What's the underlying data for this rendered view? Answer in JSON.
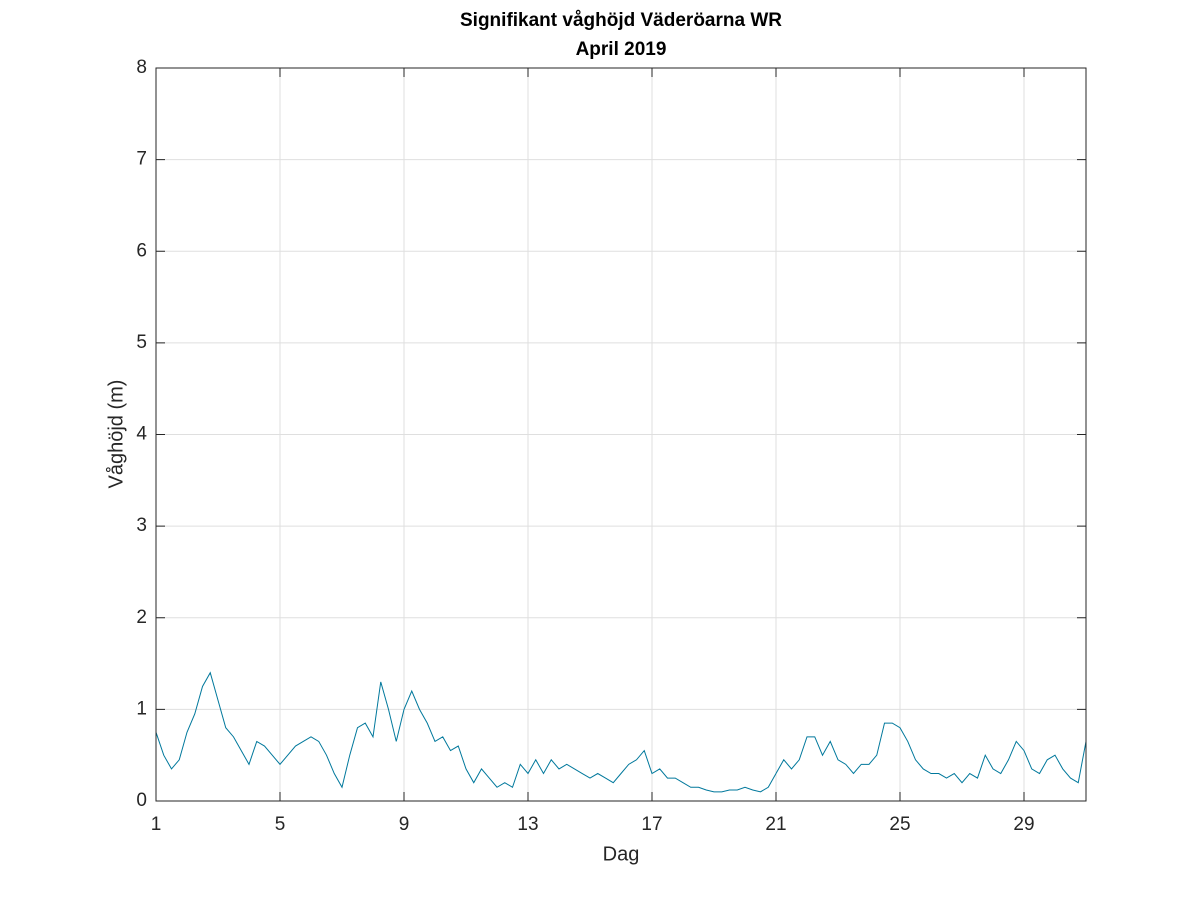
{
  "chart_data": {
    "type": "line",
    "title": "Signifikant våghöjd Väderöarna WR",
    "subtitle": "April 2019",
    "xlabel": "Dag",
    "ylabel": "Våghöjd (m)",
    "x": [
      1,
      1.25,
      1.5,
      1.75,
      2,
      2.25,
      2.5,
      2.75,
      3,
      3.25,
      3.5,
      3.75,
      4,
      4.25,
      4.5,
      4.75,
      5,
      5.25,
      5.5,
      5.75,
      6,
      6.25,
      6.5,
      6.75,
      7,
      7.25,
      7.5,
      7.75,
      8,
      8.25,
      8.5,
      8.75,
      9,
      9.25,
      9.5,
      9.75,
      10,
      10.25,
      10.5,
      10.75,
      11,
      11.25,
      11.5,
      11.75,
      12,
      12.25,
      12.5,
      12.75,
      13,
      13.25,
      13.5,
      13.75,
      14,
      14.25,
      14.5,
      14.75,
      15,
      15.25,
      15.5,
      15.75,
      16,
      16.25,
      16.5,
      16.75,
      17,
      17.25,
      17.5,
      17.75,
      18,
      18.25,
      18.5,
      18.75,
      19,
      19.25,
      19.5,
      19.75,
      20,
      20.25,
      20.5,
      20.75,
      21,
      21.25,
      21.5,
      21.75,
      22,
      22.25,
      22.5,
      22.75,
      23,
      23.25,
      23.5,
      23.75,
      24,
      24.25,
      24.5,
      24.75,
      25,
      25.25,
      25.5,
      25.75,
      26,
      26.25,
      26.5,
      26.75,
      27,
      27.25,
      27.5,
      27.75,
      28,
      28.25,
      28.5,
      28.75,
      29,
      29.25,
      29.5,
      29.75,
      30,
      30.25,
      30.5,
      30.75,
      31
    ],
    "series": [
      {
        "color": "#00789c",
        "values": [
          0.75,
          0.5,
          0.35,
          0.45,
          0.75,
          0.95,
          1.25,
          1.4,
          1.1,
          0.8,
          0.7,
          0.55,
          0.4,
          0.65,
          0.6,
          0.5,
          0.4,
          0.5,
          0.6,
          0.65,
          0.7,
          0.65,
          0.5,
          0.3,
          0.15,
          0.5,
          0.8,
          0.85,
          0.7,
          1.3,
          1.0,
          0.65,
          1.0,
          1.2,
          1.0,
          0.85,
          0.65,
          0.7,
          0.55,
          0.6,
          0.35,
          0.2,
          0.35,
          0.25,
          0.15,
          0.2,
          0.15,
          0.4,
          0.3,
          0.45,
          0.3,
          0.45,
          0.35,
          0.4,
          0.35,
          0.3,
          0.25,
          0.3,
          0.25,
          0.2,
          0.3,
          0.4,
          0.45,
          0.55,
          0.3,
          0.35,
          0.25,
          0.25,
          0.2,
          0.15,
          0.15,
          0.12,
          0.1,
          0.1,
          0.12,
          0.12,
          0.15,
          0.12,
          0.1,
          0.15,
          0.3,
          0.45,
          0.35,
          0.45,
          0.7,
          0.7,
          0.5,
          0.65,
          0.45,
          0.4,
          0.3,
          0.4,
          0.4,
          0.5,
          0.85,
          0.85,
          0.8,
          0.65,
          0.45,
          0.35,
          0.3,
          0.3,
          0.25,
          0.3,
          0.2,
          0.3,
          0.25,
          0.5,
          0.35,
          0.3,
          0.45,
          0.65,
          0.55,
          0.35,
          0.3,
          0.45,
          0.5,
          0.35,
          0.25,
          0.2,
          0.65
        ]
      }
    ],
    "xlim": [
      1,
      31
    ],
    "xticks": [
      1,
      5,
      9,
      13,
      17,
      21,
      25,
      29
    ],
    "ylim": [
      0,
      8
    ],
    "yticks": [
      0,
      1,
      2,
      3,
      4,
      5,
      6,
      7,
      8
    ],
    "grid": true
  }
}
